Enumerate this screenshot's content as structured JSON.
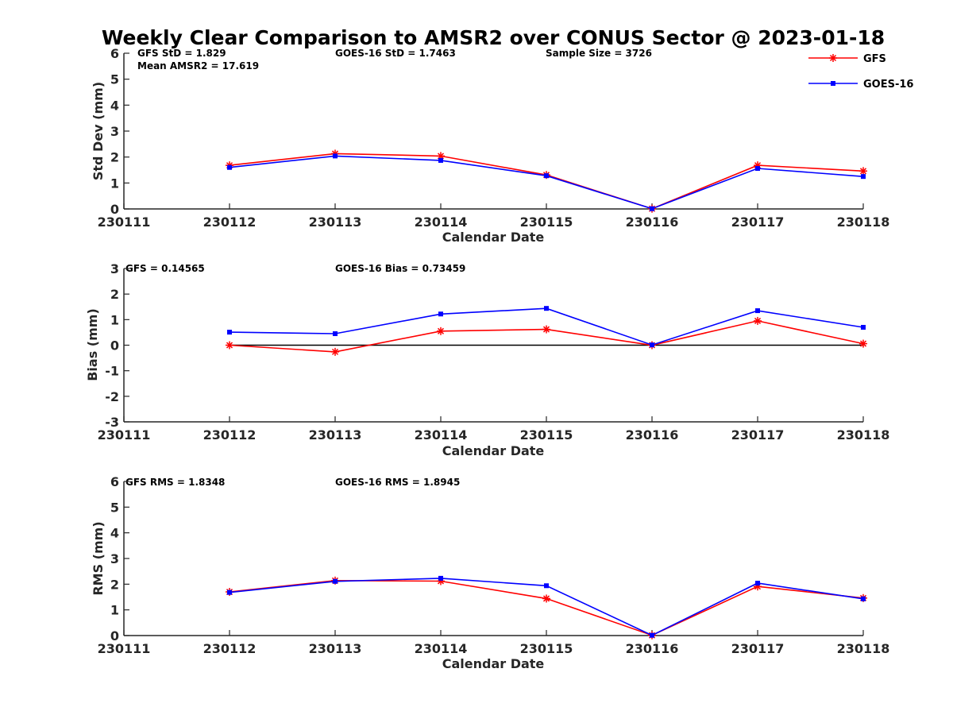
{
  "figure_title": "Weekly Clear Comparison to AMSR2 over CONUS Sector @ 2023-01-18",
  "colors": {
    "GFS": "#ff0000",
    "GOES-16": "#0000ff",
    "zero_line": "#000000",
    "axis": "#262626"
  },
  "legend": {
    "placement": "top-right",
    "entries": [
      {
        "label": "GFS",
        "marker": "asterisk"
      },
      {
        "label": "GOES-16",
        "marker": "square"
      }
    ]
  },
  "panels": [
    {
      "stats": [
        {
          "key": "gfs",
          "text": "GFS StD = 1.829"
        },
        {
          "key": "goes",
          "text": "GOES-16 StD = 1.7463"
        },
        {
          "key": "sample",
          "text": "Sample Size = 3726"
        },
        {
          "key": "mean",
          "text": "Mean AMSR2 = 17.619"
        }
      ]
    },
    {
      "stats": [
        {
          "key": "gfs",
          "text": "GFS = 0.14565"
        },
        {
          "key": "goes",
          "text": "GOES-16 Bias  = 0.73459"
        }
      ]
    },
    {
      "stats": [
        {
          "key": "gfs",
          "text": "GFS RMS = 1.8348"
        },
        {
          "key": "goes",
          "text": "GOES-16 RMS = 1.8945"
        }
      ]
    }
  ],
  "chart_data": [
    {
      "type": "line",
      "title": "",
      "xlabel": "Calendar Date",
      "ylabel": "Std Dev (mm)",
      "x_ticks": [
        "230111",
        "230112",
        "230113",
        "230114",
        "230115",
        "230116",
        "230117",
        "230118"
      ],
      "x": [
        "230112",
        "230113",
        "230114",
        "230115",
        "230116",
        "230117",
        "230118"
      ],
      "ylim": [
        0,
        6
      ],
      "y_ticks": [
        "0",
        "1",
        "2",
        "3",
        "4",
        "5",
        "6"
      ],
      "zero_line": false,
      "grid": false,
      "series": [
        {
          "name": "GFS",
          "values": [
            1.68,
            2.13,
            2.04,
            1.31,
            0.01,
            1.68,
            1.46
          ]
        },
        {
          "name": "GOES-16",
          "values": [
            1.6,
            2.04,
            1.87,
            1.28,
            0.01,
            1.56,
            1.25
          ]
        }
      ]
    },
    {
      "type": "line",
      "title": "",
      "xlabel": "Calendar Date",
      "ylabel": "Bias (mm)",
      "x_ticks": [
        "230111",
        "230112",
        "230113",
        "230114",
        "230115",
        "230116",
        "230117",
        "230118"
      ],
      "x": [
        "230112",
        "230113",
        "230114",
        "230115",
        "230116",
        "230117",
        "230118"
      ],
      "ylim": [
        -3,
        3
      ],
      "y_ticks": [
        "-3",
        "-2",
        "-1",
        "0",
        "1",
        "2",
        "3"
      ],
      "zero_line": true,
      "grid": false,
      "series": [
        {
          "name": "GFS",
          "values": [
            0.0,
            -0.26,
            0.55,
            0.62,
            0.0,
            0.95,
            0.06
          ]
        },
        {
          "name": "GOES-16",
          "values": [
            0.51,
            0.45,
            1.22,
            1.44,
            0.01,
            1.35,
            0.7
          ]
        }
      ]
    },
    {
      "type": "line",
      "title": "",
      "xlabel": "Calendar Date",
      "ylabel": "RMS (mm)",
      "x_ticks": [
        "230111",
        "230112",
        "230113",
        "230114",
        "230115",
        "230116",
        "230117",
        "230118"
      ],
      "x": [
        "230112",
        "230113",
        "230114",
        "230115",
        "230116",
        "230117",
        "230118"
      ],
      "ylim": [
        0,
        6
      ],
      "y_ticks": [
        "0",
        "1",
        "2",
        "3",
        "4",
        "5",
        "6"
      ],
      "zero_line": false,
      "grid": false,
      "series": [
        {
          "name": "GFS",
          "values": [
            1.7,
            2.14,
            2.12,
            1.44,
            0.01,
            1.91,
            1.46
          ]
        },
        {
          "name": "GOES-16",
          "values": [
            1.68,
            2.11,
            2.23,
            1.94,
            0.01,
            2.04,
            1.43
          ]
        }
      ]
    }
  ]
}
